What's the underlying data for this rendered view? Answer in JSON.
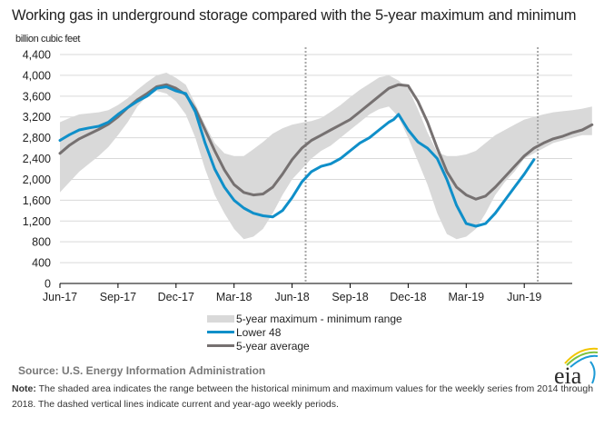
{
  "title": "Working gas in underground  storage compared with the 5-year maximum  and minimum",
  "unit_label": "billion cubic feet",
  "legend": {
    "range": "5-year maximum - minimum range",
    "lower48": "Lower 48",
    "avg": "5-year average"
  },
  "source": "Source:  U.S. Energy Information Administration",
  "note_label": "Note:",
  "note_text": " The shaded area indicates the range between the historical minimum and maximum values for the weekly series from 2014 through 2018. The dashed vertical lines indicate current and year-ago weekly periods.",
  "logo_text": "eia",
  "colors": {
    "range": "#d9d9d9",
    "lower48": "#0f8fc9",
    "avg": "#767171",
    "grid": "#d9d9d9"
  },
  "chart_data": {
    "type": "area",
    "title": "Working gas in underground storage compared with the 5-year maximum and minimum",
    "ylabel": "billion cubic feet",
    "xlabel": "",
    "ylim": [
      0,
      4400
    ],
    "yticks": [
      "0",
      "400",
      "800",
      "1,200",
      "1,600",
      "2,000",
      "2,400",
      "2,800",
      "3,200",
      "3,600",
      "4,000",
      "4,400"
    ],
    "ytick_values": [
      0,
      400,
      800,
      1200,
      1600,
      2000,
      2400,
      2800,
      3200,
      3600,
      4000,
      4400
    ],
    "xticks": [
      "Jun-17",
      "Sep-17",
      "Dec-17",
      "Mar-18",
      "Jun-18",
      "Sep-18",
      "Dec-18",
      "Mar-19",
      "Jun-19"
    ],
    "xtick_months": [
      0,
      3,
      6,
      9,
      12,
      15,
      18,
      21,
      24
    ],
    "xlim_months": [
      0,
      27.6
    ],
    "x_unit": "months since Jun-17",
    "grid": true,
    "legend_position": "bottom",
    "dashed_lines_months": [
      12.7,
      24.7
    ],
    "series": [
      {
        "name": "5-year maximum - minimum range",
        "kind": "band",
        "x": [
          0,
          0.5,
          1,
          1.5,
          2,
          2.5,
          3,
          3.5,
          4,
          4.5,
          5,
          5.5,
          6,
          6.5,
          7,
          7.5,
          8,
          8.5,
          9,
          9.5,
          10,
          10.5,
          11,
          11.5,
          12,
          12.5,
          13,
          13.5,
          14,
          14.5,
          15,
          15.5,
          16,
          16.5,
          17,
          17.5,
          18,
          18.5,
          19,
          19.5,
          20,
          20.5,
          21,
          21.5,
          22,
          22.5,
          23,
          23.5,
          24,
          24.5,
          25,
          25.5,
          26,
          26.5,
          27,
          27.5
        ],
        "max": [
          3100,
          3180,
          3250,
          3270,
          3290,
          3330,
          3430,
          3560,
          3720,
          3870,
          4000,
          4050,
          3950,
          3820,
          3450,
          3050,
          2700,
          2500,
          2450,
          2450,
          2580,
          2720,
          2880,
          2980,
          3050,
          3090,
          3120,
          3180,
          3300,
          3430,
          3580,
          3720,
          3840,
          3960,
          4000,
          3900,
          3750,
          3350,
          2900,
          2520,
          2450,
          2450,
          2480,
          2550,
          2700,
          2850,
          2950,
          3050,
          3150,
          3200,
          3250,
          3290,
          3310,
          3330,
          3360,
          3400
        ],
        "min": [
          1750,
          1950,
          2150,
          2300,
          2450,
          2620,
          2850,
          3100,
          3400,
          3600,
          3700,
          3650,
          3500,
          3250,
          2800,
          2200,
          1700,
          1350,
          1050,
          850,
          900,
          1050,
          1350,
          1700,
          2000,
          2200,
          2400,
          2550,
          2650,
          2800,
          2950,
          3100,
          3250,
          3350,
          3400,
          3200,
          2800,
          2350,
          1900,
          1350,
          950,
          850,
          900,
          1050,
          1350,
          1700,
          1950,
          2150,
          2400,
          2500,
          2600,
          2700,
          2750,
          2800,
          2850,
          2850
        ]
      },
      {
        "name": "Lower 48",
        "kind": "line",
        "x": [
          0,
          0.5,
          1,
          1.5,
          2,
          2.5,
          3,
          3.5,
          4,
          4.5,
          5,
          5.5,
          6,
          6.5,
          7,
          7.5,
          8,
          8.5,
          9,
          9.5,
          10,
          10.5,
          11,
          11.5,
          12,
          12.5,
          13,
          13.5,
          14,
          14.5,
          15,
          15.5,
          16,
          16.5,
          17,
          17.25,
          17.5,
          18,
          18.5,
          19,
          19.5,
          20,
          20.5,
          21,
          21.5,
          22,
          22.5,
          23,
          23.5,
          24,
          24.5
        ],
        "y": [
          2750,
          2860,
          2950,
          2990,
          3020,
          3100,
          3250,
          3380,
          3500,
          3600,
          3750,
          3780,
          3700,
          3650,
          3300,
          2700,
          2200,
          1850,
          1600,
          1450,
          1350,
          1300,
          1280,
          1400,
          1650,
          1950,
          2150,
          2250,
          2300,
          2400,
          2550,
          2700,
          2800,
          2950,
          3100,
          3150,
          3250,
          2950,
          2720,
          2600,
          2400,
          2000,
          1500,
          1150,
          1100,
          1150,
          1350,
          1600,
          1850,
          2100,
          2380
        ]
      },
      {
        "name": "5-year average",
        "kind": "line",
        "x": [
          0,
          0.5,
          1,
          1.5,
          2,
          2.5,
          3,
          3.5,
          4,
          4.5,
          5,
          5.5,
          6,
          6.5,
          7,
          7.5,
          8,
          8.5,
          9,
          9.5,
          10,
          10.5,
          11,
          11.5,
          12,
          12.5,
          13,
          13.5,
          14,
          14.5,
          15,
          15.5,
          16,
          16.5,
          17,
          17.5,
          18,
          18.5,
          19,
          19.5,
          20,
          20.5,
          21,
          21.5,
          22,
          22.5,
          23,
          23.5,
          24,
          24.5,
          25,
          25.5,
          26,
          26.5,
          27,
          27.5
        ],
        "y": [
          2500,
          2660,
          2780,
          2870,
          2960,
          3060,
          3200,
          3380,
          3530,
          3650,
          3780,
          3820,
          3750,
          3630,
          3350,
          2950,
          2550,
          2180,
          1900,
          1750,
          1700,
          1720,
          1850,
          2100,
          2380,
          2600,
          2750,
          2850,
          2950,
          3050,
          3150,
          3300,
          3450,
          3600,
          3750,
          3820,
          3800,
          3500,
          3100,
          2600,
          2150,
          1850,
          1700,
          1620,
          1680,
          1850,
          2050,
          2250,
          2450,
          2600,
          2700,
          2780,
          2830,
          2900,
          2950,
          3050
        ]
      }
    ]
  }
}
